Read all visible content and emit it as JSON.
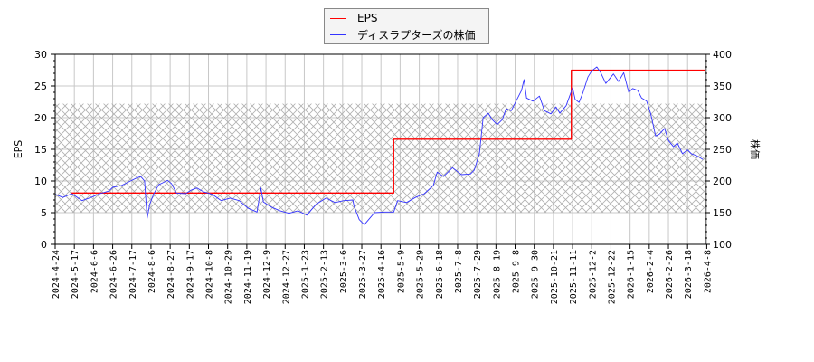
{
  "chart_data": {
    "type": "line",
    "legend": {
      "placement": "top-center",
      "entries": [
        "EPS",
        "ディスラプターズの株価"
      ]
    },
    "ylabel_left": "EPS",
    "ylabel_right": "株価",
    "ylim_left": [
      0,
      30
    ],
    "ylim_right": [
      100,
      400
    ],
    "yticks_left": [
      "0",
      "5",
      "10",
      "15",
      "20",
      "25",
      "30"
    ],
    "yticks_right": [
      "100",
      "150",
      "200",
      "250",
      "300",
      "350",
      "400"
    ],
    "grid": true,
    "x_domain_trading_days": [
      0,
      509
    ],
    "xtick_step_trading_days": 15,
    "xticks": [
      "2024-4-24",
      "2024-5-17",
      "2024-6-6",
      "2024-6-26",
      "2024-7-17",
      "2024-8-6",
      "2024-8-27",
      "2024-9-17",
      "2024-10-8",
      "2024-10-29",
      "2024-11-19",
      "2024-12-9",
      "2024-12-27",
      "2025-1-23",
      "2025-2-13",
      "2025-3-6",
      "2025-3-27",
      "2025-4-16",
      "2025-5-9",
      "2025-5-29",
      "2025-6-18",
      "2025-7-8",
      "2025-7-29",
      "2025-8-19",
      "2025-9-8",
      "2025-9-30",
      "2025-10-21",
      "2025-11-11",
      "2025-12-2",
      "2025-12-22",
      "2026-1-15",
      "2026-2-4",
      "2026-2-26",
      "2026-3-18",
      "2026-4-8"
    ],
    "shaded_band_price": [
      150,
      322
    ],
    "series": [
      {
        "name": "EPS",
        "axis": "left",
        "color": "#ff0000",
        "points": [
          [
            12,
            8.1
          ],
          [
            265,
            8.1
          ],
          [
            265,
            16.6
          ],
          [
            404,
            16.6
          ],
          [
            404,
            27.5
          ],
          [
            509,
            27.5
          ]
        ]
      },
      {
        "name": "ディスラプターズの株価",
        "axis": "right",
        "color": "#3333ff",
        "points": [
          [
            0,
            179
          ],
          [
            6,
            174
          ],
          [
            13,
            180
          ],
          [
            21,
            169
          ],
          [
            28,
            174
          ],
          [
            35,
            180
          ],
          [
            42,
            184
          ],
          [
            45,
            190
          ],
          [
            52,
            193
          ],
          [
            59,
            200
          ],
          [
            63,
            204
          ],
          [
            67,
            207
          ],
          [
            70,
            200
          ],
          [
            72,
            141
          ],
          [
            74,
            163
          ],
          [
            77,
            179
          ],
          [
            81,
            194
          ],
          [
            84,
            197
          ],
          [
            88,
            201
          ],
          [
            91,
            196
          ],
          [
            95,
            181
          ],
          [
            102,
            180
          ],
          [
            107,
            186
          ],
          [
            111,
            189
          ],
          [
            116,
            183
          ],
          [
            123,
            179
          ],
          [
            130,
            169
          ],
          [
            137,
            173
          ],
          [
            144,
            169
          ],
          [
            151,
            157
          ],
          [
            158,
            151
          ],
          [
            161,
            189
          ],
          [
            163,
            167
          ],
          [
            169,
            159
          ],
          [
            176,
            153
          ],
          [
            183,
            149
          ],
          [
            190,
            153
          ],
          [
            197,
            146
          ],
          [
            204,
            163
          ],
          [
            212,
            173
          ],
          [
            219,
            166
          ],
          [
            226,
            169
          ],
          [
            233,
            170
          ],
          [
            234,
            160
          ],
          [
            238,
            139
          ],
          [
            242,
            131
          ],
          [
            247,
            143
          ],
          [
            250,
            150
          ],
          [
            258,
            151
          ],
          [
            265,
            151
          ],
          [
            268,
            169
          ],
          [
            275,
            166
          ],
          [
            282,
            174
          ],
          [
            289,
            180
          ],
          [
            296,
            193
          ],
          [
            299,
            214
          ],
          [
            304,
            207
          ],
          [
            311,
            221
          ],
          [
            318,
            210
          ],
          [
            325,
            211
          ],
          [
            328,
            217
          ],
          [
            332,
            243
          ],
          [
            335,
            300
          ],
          [
            339,
            307
          ],
          [
            342,
            297
          ],
          [
            346,
            289
          ],
          [
            350,
            297
          ],
          [
            353,
            314
          ],
          [
            357,
            311
          ],
          [
            360,
            323
          ],
          [
            365,
            343
          ],
          [
            367,
            360
          ],
          [
            369,
            331
          ],
          [
            374,
            326
          ],
          [
            379,
            334
          ],
          [
            383,
            311
          ],
          [
            388,
            306
          ],
          [
            392,
            317
          ],
          [
            395,
            307
          ],
          [
            400,
            319
          ],
          [
            403,
            336
          ],
          [
            405,
            347
          ],
          [
            407,
            329
          ],
          [
            410,
            324
          ],
          [
            413,
            339
          ],
          [
            417,
            364
          ],
          [
            420,
            374
          ],
          [
            424,
            380
          ],
          [
            427,
            371
          ],
          [
            431,
            354
          ],
          [
            437,
            369
          ],
          [
            441,
            357
          ],
          [
            445,
            371
          ],
          [
            449,
            340
          ],
          [
            452,
            346
          ],
          [
            456,
            343
          ],
          [
            459,
            331
          ],
          [
            463,
            326
          ],
          [
            466,
            307
          ],
          [
            470,
            271
          ],
          [
            473,
            274
          ],
          [
            477,
            283
          ],
          [
            480,
            264
          ],
          [
            484,
            254
          ],
          [
            487,
            260
          ],
          [
            491,
            243
          ],
          [
            495,
            249
          ],
          [
            498,
            243
          ],
          [
            502,
            240
          ],
          [
            507,
            234
          ]
        ]
      }
    ]
  }
}
